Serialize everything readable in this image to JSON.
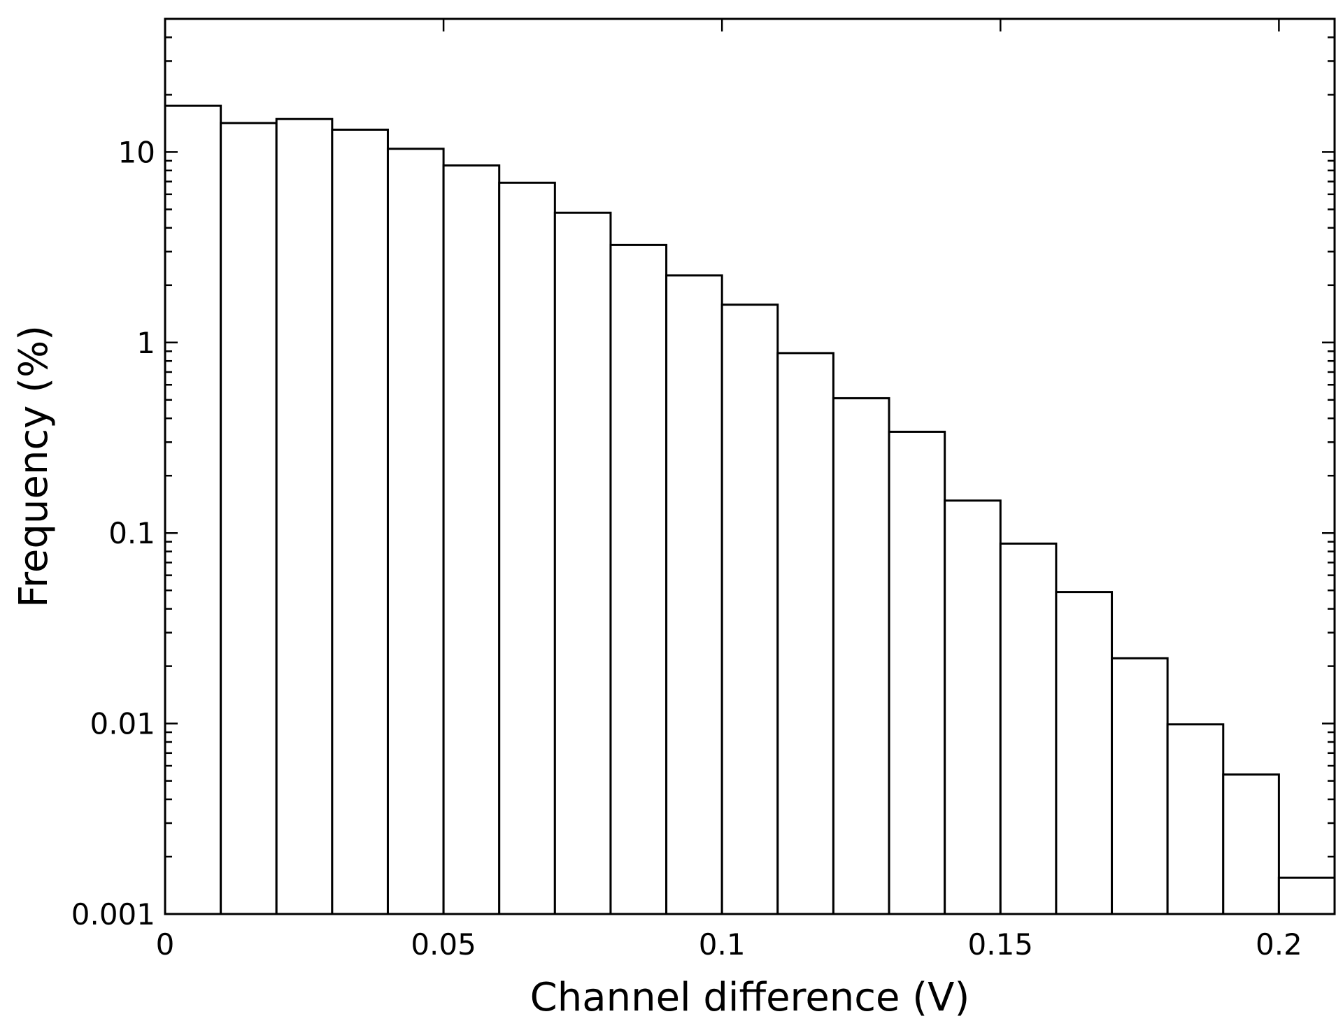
{
  "chart_data": {
    "type": "bar",
    "xlabel": "Channel difference (V)",
    "ylabel": "Frequency (%)",
    "xlim": [
      0,
      0.21
    ],
    "ylim": [
      0.001,
      50
    ],
    "y_scale": "log",
    "grid": false,
    "x_ticks": [
      0,
      0.05,
      0.1,
      0.15,
      0.2
    ],
    "x_tick_labels": [
      "0",
      "0.05",
      "0.1",
      "0.15",
      "0.2"
    ],
    "y_ticks": [
      0.001,
      0.01,
      0.1,
      1,
      10
    ],
    "y_tick_labels": [
      "0.001",
      "0.01",
      "0.1",
      "1",
      "10"
    ],
    "bin_width": 0.01,
    "bins": [
      {
        "x0": 0.0,
        "value": 17.5
      },
      {
        "x0": 0.01,
        "value": 14.2
      },
      {
        "x0": 0.02,
        "value": 14.9
      },
      {
        "x0": 0.03,
        "value": 13.1
      },
      {
        "x0": 0.04,
        "value": 10.4
      },
      {
        "x0": 0.05,
        "value": 8.5
      },
      {
        "x0": 0.06,
        "value": 6.9
      },
      {
        "x0": 0.07,
        "value": 4.8
      },
      {
        "x0": 0.08,
        "value": 3.25
      },
      {
        "x0": 0.09,
        "value": 2.25
      },
      {
        "x0": 0.1,
        "value": 1.58
      },
      {
        "x0": 0.11,
        "value": 0.88
      },
      {
        "x0": 0.12,
        "value": 0.51
      },
      {
        "x0": 0.13,
        "value": 0.34
      },
      {
        "x0": 0.14,
        "value": 0.148
      },
      {
        "x0": 0.15,
        "value": 0.088
      },
      {
        "x0": 0.16,
        "value": 0.049
      },
      {
        "x0": 0.17,
        "value": 0.022
      },
      {
        "x0": 0.18,
        "value": 0.0099
      },
      {
        "x0": 0.19,
        "value": 0.0054
      },
      {
        "x0": 0.2,
        "value": 0.00155
      }
    ]
  }
}
